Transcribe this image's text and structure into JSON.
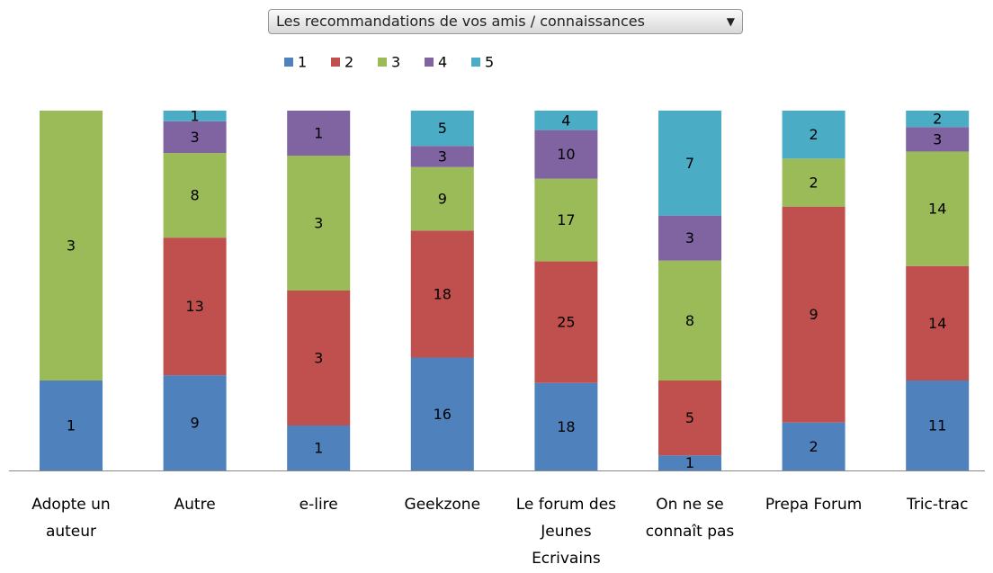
{
  "chart_data": {
    "type": "bar",
    "stacked": "percent",
    "title": "Les recommandations de vos amis / connaissances",
    "categories": [
      "Adopte un auteur",
      "Autre",
      "e-lire",
      "Geekzone",
      "Le forum des Jeunes Ecrivains",
      "On ne se connaît pas",
      "Prepa Forum",
      "Tric-trac"
    ],
    "series": [
      {
        "name": "1",
        "color": "#4f81bd",
        "values": [
          1,
          9,
          1,
          16,
          18,
          1,
          2,
          11
        ]
      },
      {
        "name": "2",
        "color": "#c0504d",
        "values": [
          null,
          13,
          3,
          18,
          25,
          5,
          9,
          14
        ]
      },
      {
        "name": "3",
        "color": "#9bbb59",
        "values": [
          3,
          8,
          3,
          9,
          17,
          8,
          2,
          14
        ]
      },
      {
        "name": "4",
        "color": "#8064a2",
        "values": [
          null,
          3,
          1,
          3,
          10,
          3,
          null,
          3
        ]
      },
      {
        "name": "5",
        "color": "#4bacc6",
        "values": [
          null,
          1,
          null,
          5,
          4,
          7,
          2,
          2
        ]
      }
    ]
  }
}
